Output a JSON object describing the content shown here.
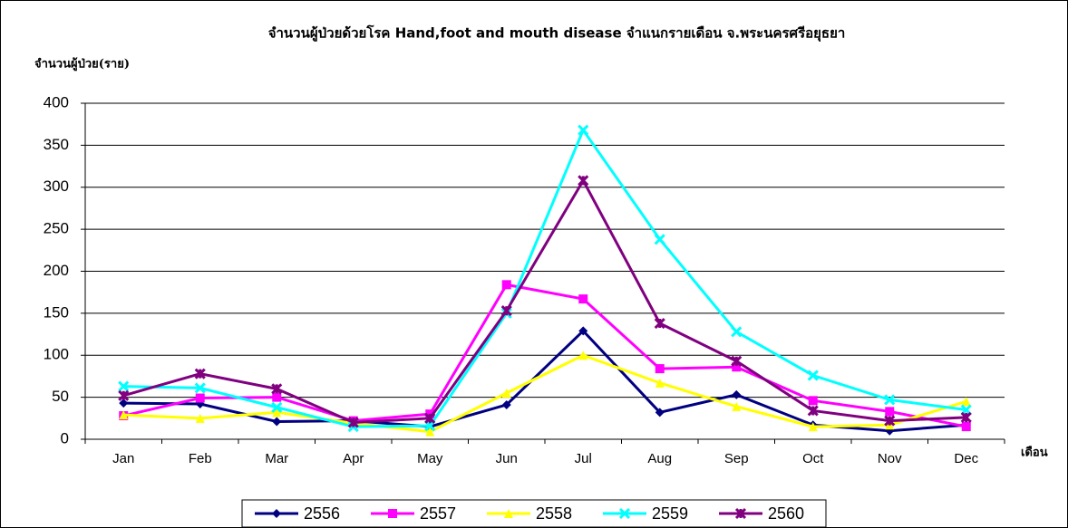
{
  "chart_data": {
    "type": "line",
    "title": "จำนวนผู้ป่วยด้วยโรค  Hand,foot and mouth disease  จำแนกรายเดือน   จ.พระนครศรีอยุธยา",
    "y_label": "จำนวนผู้ป่วย(ราย)",
    "x_label": "เดือน",
    "categories": [
      "Jan",
      "Feb",
      "Mar",
      "Apr",
      "May",
      "Jun",
      "Jul",
      "Aug",
      "Sep",
      "Oct",
      "Nov",
      "Dec"
    ],
    "ylim": [
      0,
      400
    ],
    "yticks": [
      0,
      50,
      100,
      150,
      200,
      250,
      300,
      350,
      400
    ],
    "grid": true,
    "legend": "bottom",
    "series": [
      {
        "name": "2556",
        "color": "#000080",
        "marker": "diamond",
        "values": [
          43,
          42,
          21,
          22,
          15,
          41,
          129,
          32,
          53,
          17,
          10,
          17
        ]
      },
      {
        "name": "2557",
        "color": "#ff00ff",
        "marker": "square",
        "values": [
          28,
          49,
          50,
          22,
          30,
          184,
          167,
          84,
          86,
          46,
          33,
          15
        ]
      },
      {
        "name": "2558",
        "color": "#ffff00",
        "marker": "triangle",
        "values": [
          29,
          25,
          32,
          19,
          9,
          55,
          100,
          67,
          39,
          15,
          17,
          45
        ]
      },
      {
        "name": "2559",
        "color": "#00ffff",
        "marker": "x",
        "values": [
          63,
          61,
          38,
          15,
          16,
          150,
          368,
          238,
          128,
          76,
          47,
          35
        ]
      },
      {
        "name": "2560",
        "color": "#800080",
        "marker": "star",
        "values": [
          52,
          78,
          60,
          20,
          25,
          153,
          308,
          138,
          93,
          34,
          22,
          26
        ]
      }
    ]
  }
}
